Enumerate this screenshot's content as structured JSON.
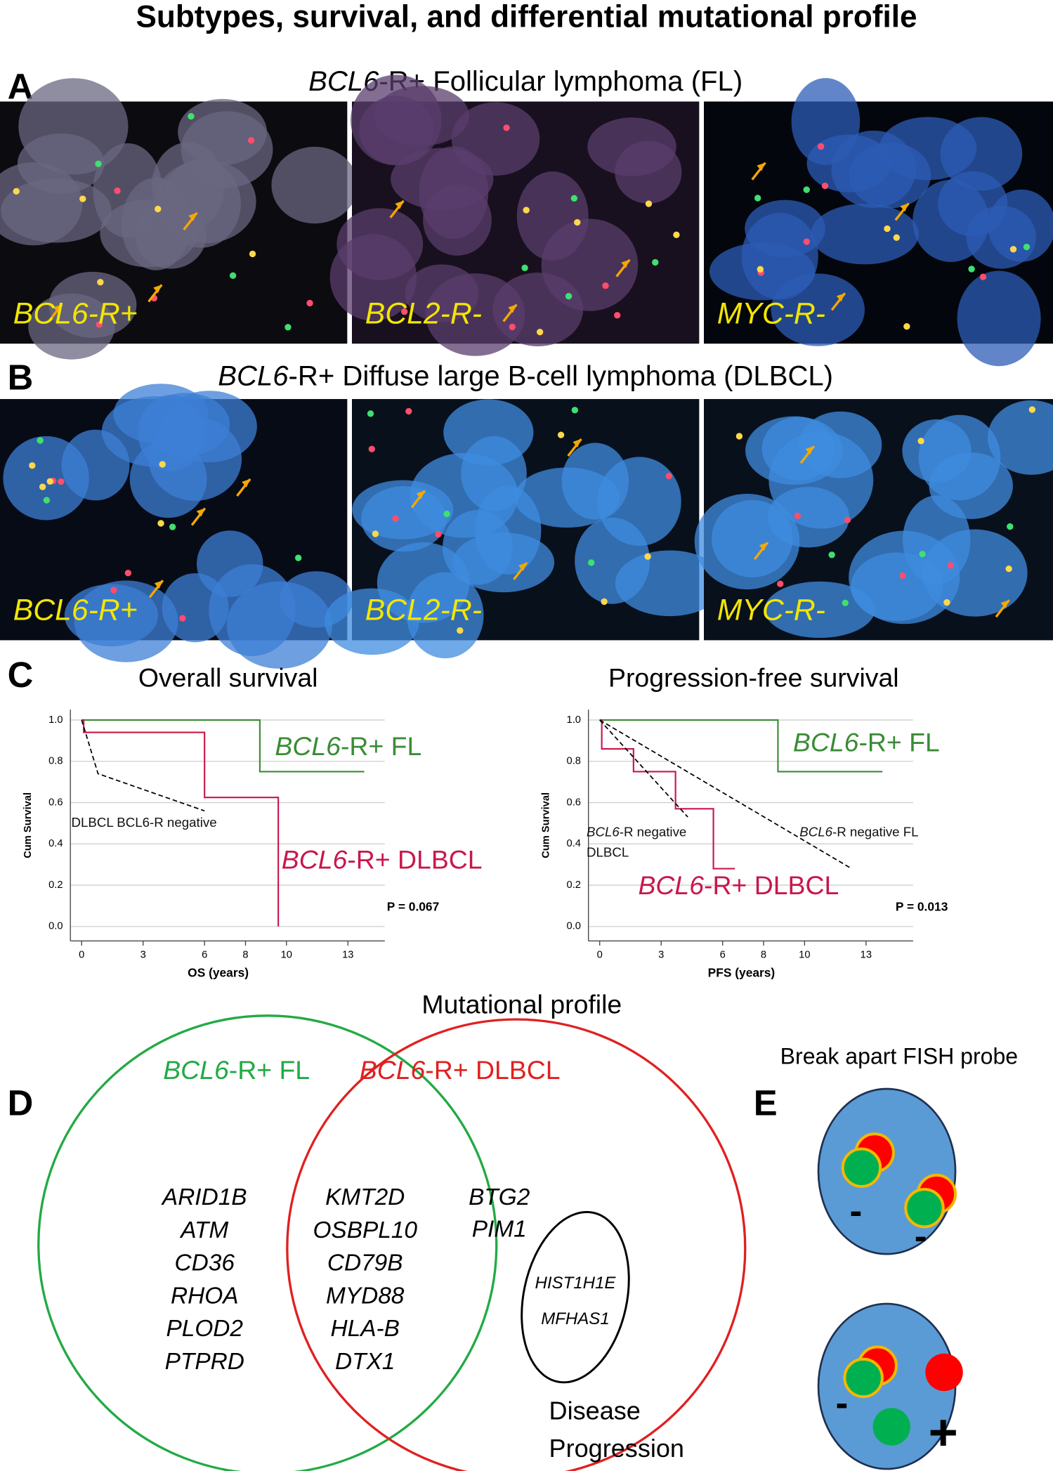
{
  "title": "Subtypes, survival, and differential mutational profile",
  "panels": {
    "a": {
      "letter": "A",
      "heading": [
        {
          "text": "BCL6",
          "italic": true
        },
        {
          "text": "-R+ Follicular lymphoma (FL)",
          "italic": false
        }
      ],
      "images": [
        "BCL6-R+",
        "BCL2-R-",
        "MYC-R-"
      ]
    },
    "b": {
      "letter": "B",
      "heading": [
        {
          "text": "BCL6",
          "italic": true
        },
        {
          "text": "-R+ Diffuse large B-cell lymphoma (DLBCL)",
          "italic": false
        }
      ],
      "images": [
        "BCL6-R+",
        "BCL2-R-",
        "MYC-R-"
      ]
    },
    "c": {
      "letter": "C",
      "charts": [
        {
          "type": "line",
          "title": "Overall survival",
          "x_label": "OS (years)",
          "y_label": "Cum Survival",
          "p_value": "P = 0.067",
          "xlim": [
            -0.55,
            14.8
          ],
          "ylim": [
            -0.07,
            1.05
          ],
          "xticks": [
            0,
            3,
            6,
            8,
            10,
            13
          ],
          "yticks": [
            {
              "value": 0,
              "label": "0.0"
            },
            {
              "value": 0.2,
              "label": "0.2"
            },
            {
              "value": 0.4,
              "label": "0.4"
            },
            {
              "value": 0.6,
              "label": "0.6"
            },
            {
              "value": 0.8,
              "label": "0.8"
            },
            {
              "value": 1,
              "label": "1.0"
            }
          ],
          "grid": true,
          "series": [
            {
              "label": [
                [
                  {
                    "text": "BCL6",
                    "italic": true
                  },
                  {
                    "text": "-R+ FL",
                    "italic": false
                  }
                ]
              ],
              "color": "#3a8c35",
              "dashed": false,
              "step": true,
              "x": [
                0,
                8.7,
                13.8
              ],
              "y": [
                1,
                0.75,
                0.75
              ]
            },
            {
              "label": [
                [
                  {
                    "text": "BCL6",
                    "italic": true
                  },
                  {
                    "text": "-R+ DLBCL",
                    "italic": false
                  }
                ]
              ],
              "color": "#c8174b",
              "dashed": false,
              "step": true,
              "x": [
                0,
                0.1,
                6.0,
                9.6
              ],
              "y": [
                1,
                0.94,
                0.625,
                0
              ]
            },
            {
              "label": [
                [
                  {
                    "text": "DLBCL BCL6-R negative",
                    "italic": false
                  }
                ]
              ],
              "color": "#000000",
              "dashed": true,
              "step": false,
              "x": [
                0,
                0.8,
                6.0
              ],
              "y": [
                1,
                0.74,
                0.56
              ]
            }
          ]
        },
        {
          "type": "line",
          "title": "Progression-free survival",
          "x_label": "PFS (years)",
          "y_label": "Cum Survival",
          "p_value": "P = 0.013",
          "xlim": [
            -0.55,
            15.3
          ],
          "ylim": [
            -0.07,
            1.05
          ],
          "xticks": [
            0,
            3,
            6,
            8,
            10,
            13
          ],
          "yticks": [
            {
              "value": 0,
              "label": "0.0"
            },
            {
              "value": 0.2,
              "label": "0.2"
            },
            {
              "value": 0.4,
              "label": "0.4"
            },
            {
              "value": 0.6,
              "label": "0.6"
            },
            {
              "value": 0.8,
              "label": "0.8"
            },
            {
              "value": 1,
              "label": "1.0"
            }
          ],
          "grid": true,
          "series": [
            {
              "label": [
                [
                  {
                    "text": "BCL6",
                    "italic": true
                  },
                  {
                    "text": "-R+ FL",
                    "italic": false
                  }
                ]
              ],
              "color": "#3a8c35",
              "dashed": false,
              "step": true,
              "x": [
                0,
                8.7,
                13.8
              ],
              "y": [
                1,
                0.75,
                0.75
              ]
            },
            {
              "label": [
                [
                  {
                    "text": "BCL6",
                    "italic": true
                  },
                  {
                    "text": "-R+ DLBCL",
                    "italic": false
                  }
                ]
              ],
              "color": "#c8174b",
              "dashed": false,
              "step": true,
              "x": [
                0,
                0.1,
                1.65,
                3.7,
                5.55,
                6.6
              ],
              "y": [
                1,
                0.86,
                0.75,
                0.57,
                0.28,
                0.28
              ]
            },
            {
              "label": [
                [
                  {
                    "text": "BCL6",
                    "italic": true
                  },
                  {
                    "text": "-R negative",
                    "italic": false
                  }
                ],
                [
                  {
                    "text": "DLBCL",
                    "italic": false
                  }
                ]
              ],
              "color": "#000000",
              "dashed": true,
              "step": false,
              "x": [
                0,
                4.3
              ],
              "y": [
                1,
                0.53
              ]
            },
            {
              "label": [
                [
                  {
                    "text": "BCL6",
                    "italic": true
                  },
                  {
                    "text": "-R negative FL",
                    "italic": false
                  }
                ]
              ],
              "color": "#000000",
              "dashed": true,
              "step": false,
              "x": [
                0,
                12.3
              ],
              "y": [
                1,
                0.28
              ]
            }
          ]
        }
      ]
    },
    "mutational_title": "Mutational profile",
    "d": {
      "letter": "D",
      "sets": [
        {
          "label": [
            {
              "text": "BCL6",
              "italic": true
            },
            {
              "text": "-R+ FL",
              "italic": false
            }
          ],
          "color": "#22aa44"
        },
        {
          "label": [
            {
              "text": "BCL6",
              "italic": true
            },
            {
              "text": "-R+ DLBCL",
              "italic": false
            }
          ],
          "color": "#e02020"
        }
      ],
      "fl_only": [
        "ARID1B",
        "ATM",
        "CD36",
        "RHOA",
        "PLOD2",
        "PTPRD"
      ],
      "shared": [
        "KMT2D",
        "OSBPL10",
        "CD79B",
        "MYD88",
        "HLA-B",
        "DTX1"
      ],
      "dlbcl_only": [
        "BTG2",
        "PIM1"
      ],
      "progression_genes": [
        "HIST1H1E",
        "MFHAS1"
      ],
      "progression_label": [
        "Disease",
        "Progression"
      ]
    },
    "e": {
      "letter": "E",
      "title": "Break apart FISH probe",
      "signs": [
        "-",
        "-",
        "-",
        "+"
      ]
    }
  }
}
